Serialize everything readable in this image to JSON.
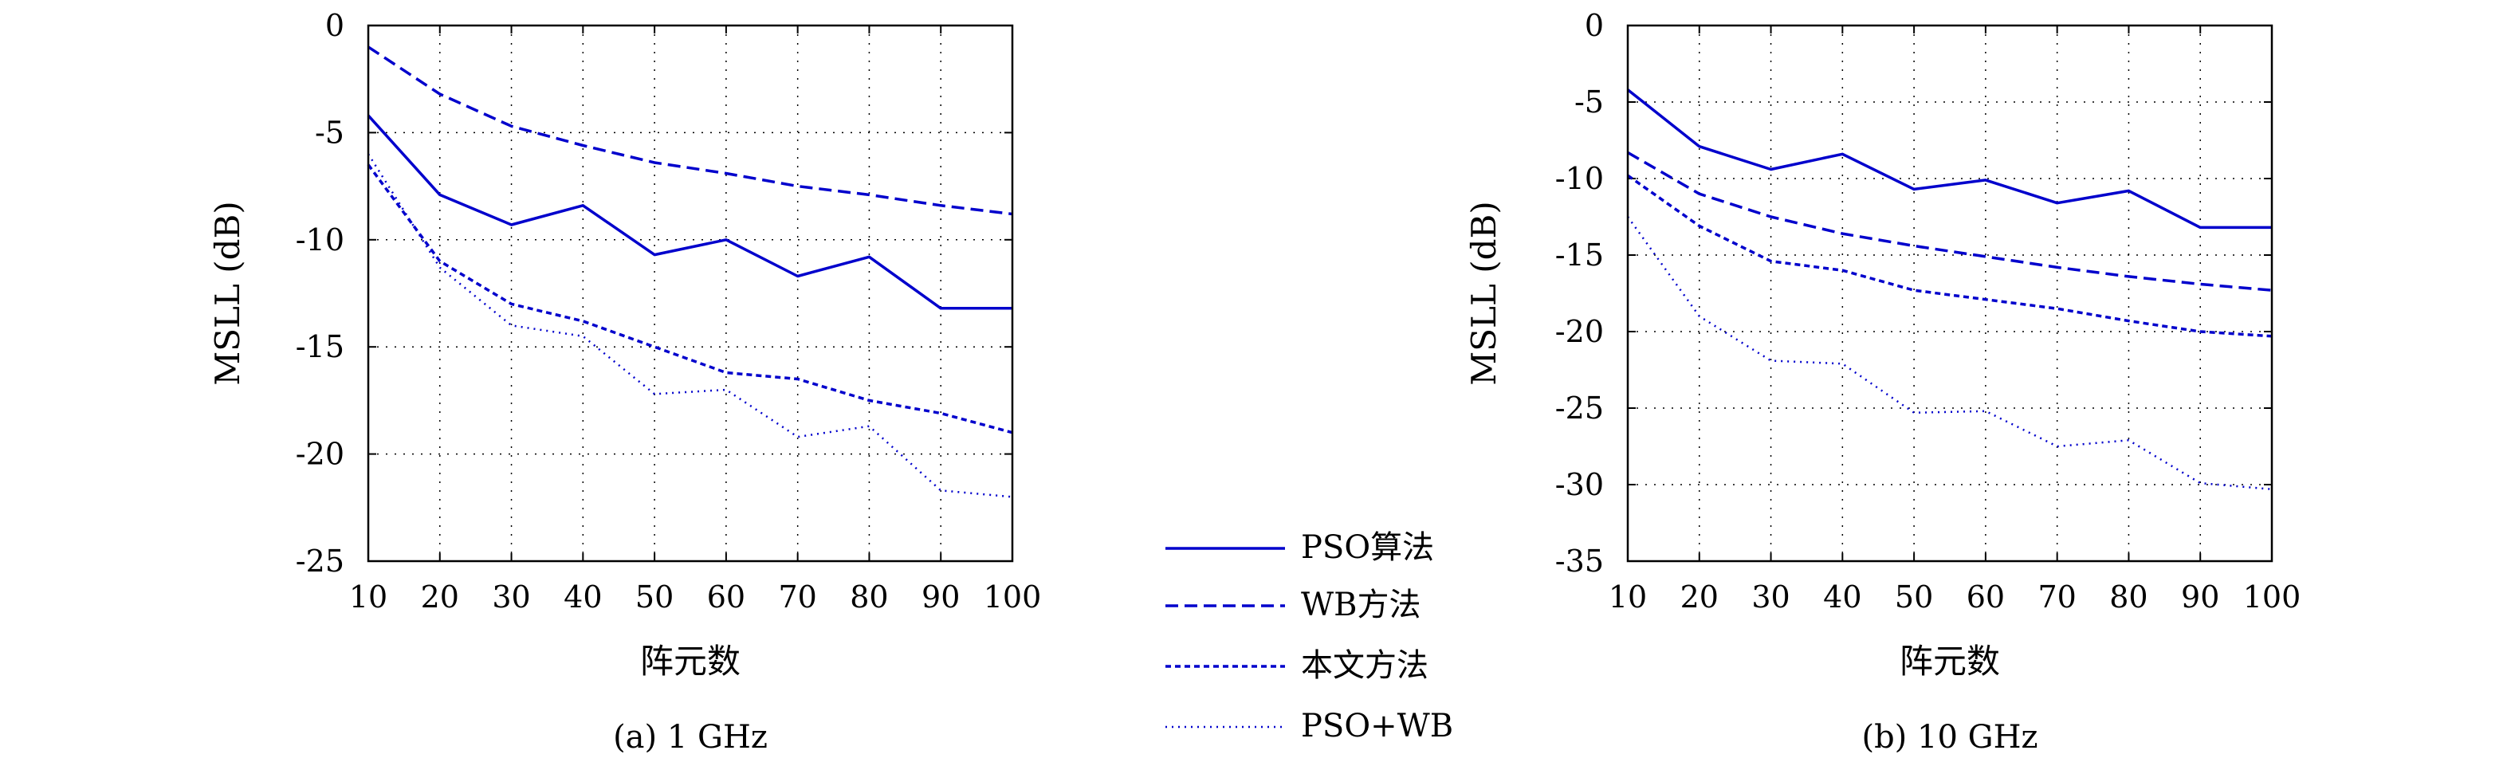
{
  "figure": {
    "legend": [
      {
        "label": "PSO算法",
        "style": "solid"
      },
      {
        "label": "WB方法",
        "style": "dashed"
      },
      {
        "label": "本文方法",
        "style": "dense-dashed"
      },
      {
        "label": "PSO+WB",
        "style": "dotted"
      }
    ],
    "line_color": "#0000cc"
  },
  "chart_data": [
    {
      "type": "line",
      "caption": "(a) 1 GHz",
      "xlabel": "阵元数",
      "ylabel": "MSLL (dB)",
      "xlim": [
        10,
        100
      ],
      "ylim": [
        -25,
        0
      ],
      "xticks": [
        10,
        20,
        30,
        40,
        50,
        60,
        70,
        80,
        90,
        100
      ],
      "yticks": [
        0,
        -5,
        -10,
        -15,
        -20,
        -25
      ],
      "grid": true,
      "x": [
        10,
        20,
        30,
        40,
        50,
        60,
        70,
        80,
        90,
        100
      ],
      "series": [
        {
          "name": "PSO算法",
          "values": [
            -4.2,
            -7.9,
            -9.3,
            -8.4,
            -10.7,
            -10.0,
            -11.7,
            -10.8,
            -13.2,
            -13.2
          ]
        },
        {
          "name": "WB方法",
          "values": [
            -1.0,
            -3.2,
            -4.7,
            -5.6,
            -6.4,
            -6.9,
            -7.5,
            -7.9,
            -8.4,
            -8.8
          ]
        },
        {
          "name": "本文方法",
          "values": [
            -6.5,
            -11.0,
            -13.0,
            -13.8,
            -15.0,
            -16.2,
            -16.5,
            -17.5,
            -18.1,
            -19.0
          ]
        },
        {
          "name": "PSO+WB",
          "values": [
            -6.0,
            -11.3,
            -14.0,
            -14.5,
            -17.2,
            -17.0,
            -19.2,
            -18.7,
            -21.7,
            -22.0
          ]
        }
      ]
    },
    {
      "type": "line",
      "caption": "(b) 10 GHz",
      "xlabel": "阵元数",
      "ylabel": "MSLL (dB)",
      "xlim": [
        10,
        100
      ],
      "ylim": [
        -35,
        0
      ],
      "xticks": [
        10,
        20,
        30,
        40,
        50,
        60,
        70,
        80,
        90,
        100
      ],
      "yticks": [
        0,
        -5,
        -10,
        -15,
        -20,
        -25,
        -30,
        -35
      ],
      "grid": true,
      "x": [
        10,
        20,
        30,
        40,
        50,
        60,
        70,
        80,
        90,
        100
      ],
      "series": [
        {
          "name": "PSO算法",
          "values": [
            -4.2,
            -7.9,
            -9.4,
            -8.4,
            -10.7,
            -10.1,
            -11.6,
            -10.8,
            -13.2,
            -13.2
          ]
        },
        {
          "name": "WB方法",
          "values": [
            -8.3,
            -11.0,
            -12.5,
            -13.6,
            -14.4,
            -15.1,
            -15.8,
            -16.4,
            -16.9,
            -17.3
          ]
        },
        {
          "name": "本文方法",
          "values": [
            -9.8,
            -13.1,
            -15.4,
            -16.0,
            -17.3,
            -17.9,
            -18.5,
            -19.3,
            -20.0,
            -20.3
          ]
        },
        {
          "name": "PSO+WB",
          "values": [
            -12.5,
            -19.0,
            -21.9,
            -22.1,
            -25.3,
            -25.2,
            -27.5,
            -27.1,
            -29.9,
            -30.3
          ]
        }
      ]
    }
  ]
}
